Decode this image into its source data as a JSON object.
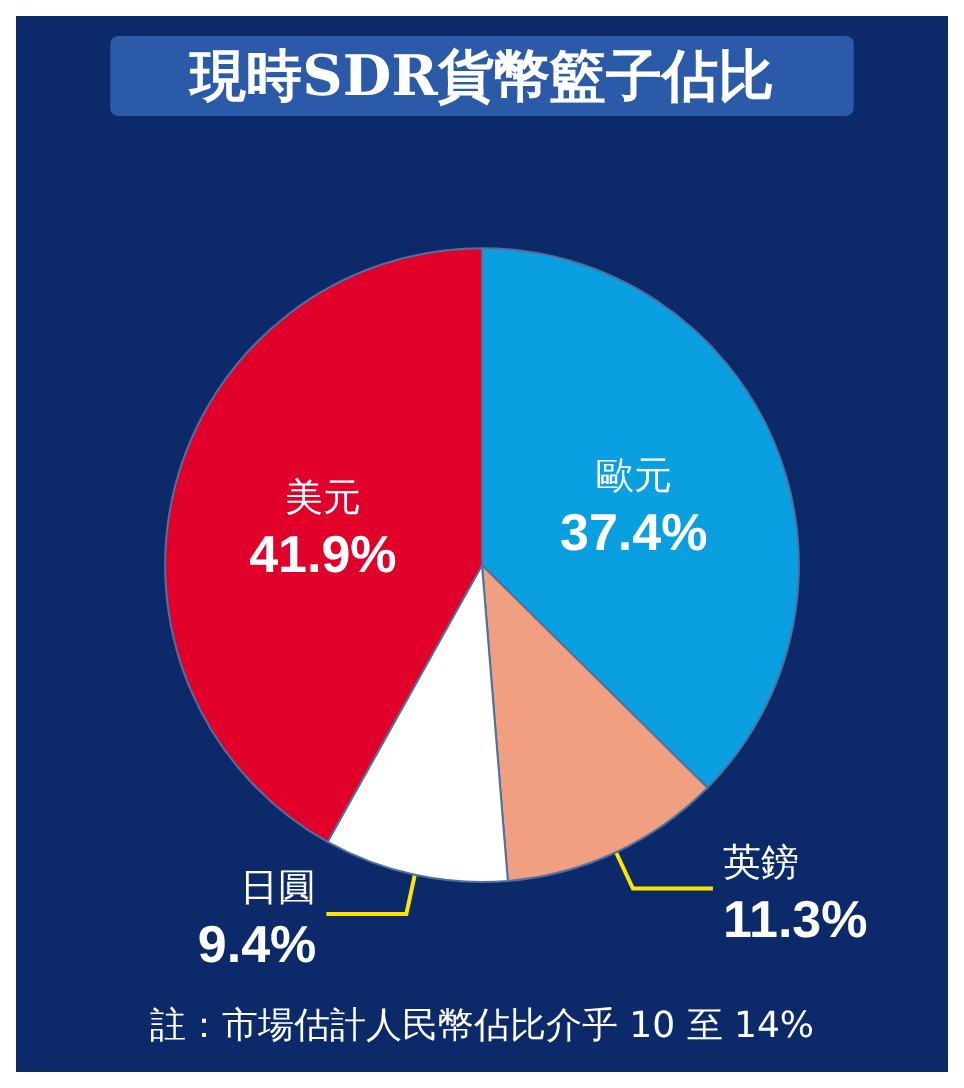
{
  "chart_data": {
    "type": "pie",
    "title": "現時SDR貨幣籃子佔比",
    "categories": [
      "歐元",
      "英鎊",
      "日圓",
      "美元"
    ],
    "values": [
      37.4,
      11.3,
      9.4,
      41.9
    ],
    "value_labels": [
      "37.4%",
      "11.3%",
      "9.4%",
      "41.9%"
    ],
    "colors": [
      "#0a9fe0",
      "#f0a080",
      "#ffffff",
      "#e0002a"
    ],
    "annotations": [
      "註：市場估計人民幣佔比介乎 10 至 14%"
    ],
    "legend": false
  }
}
